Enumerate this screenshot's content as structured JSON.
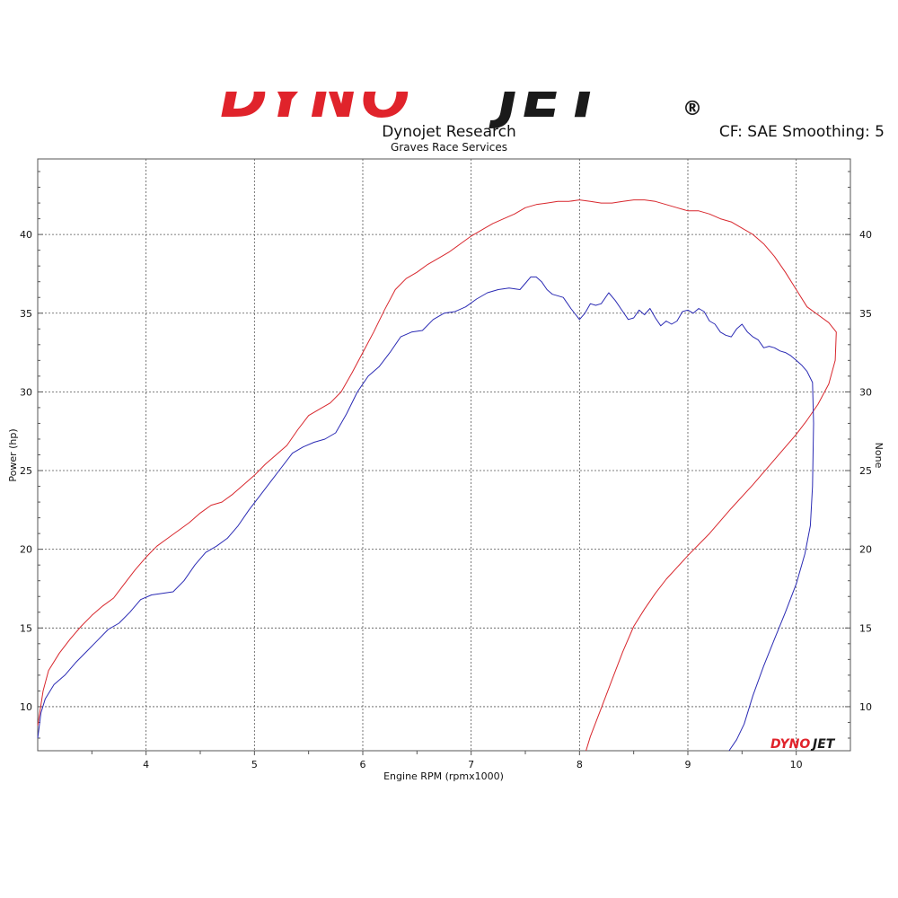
{
  "header": {
    "logo_red": "DYNO",
    "logo_black": "JET",
    "registered_mark": "®",
    "title": "Dynojet Research",
    "subtitle": "Graves Race Services",
    "correction": "CF: SAE Smoothing: 5"
  },
  "watermark": {
    "red": "DYNO",
    "black": "JET"
  },
  "colors": {
    "red": "#d8272d",
    "blue": "#2b2bb4",
    "grid": "#555555",
    "brand_red": "#e0232b",
    "brand_black": "#1a1a1a"
  },
  "chart_data": {
    "type": "line",
    "xlabel": "Engine RPM (rpmx1000)",
    "ylabel": "Power (hp)",
    "ylabel_right": "None",
    "xlim": [
      3.0,
      10.5
    ],
    "ylim": [
      7.2,
      44.8
    ],
    "x_ticks": [
      "4",
      "5",
      "6",
      "7",
      "8",
      "9",
      "10"
    ],
    "y_ticks": [
      "10",
      "15",
      "20",
      "25",
      "30",
      "35",
      "40"
    ],
    "y_ticks_right": [
      "10",
      "15",
      "20",
      "25",
      "30",
      "35",
      "40"
    ],
    "grid": true,
    "series": [
      {
        "color": "red",
        "points": [
          [
            3.0,
            8.8
          ],
          [
            3.05,
            11.0
          ],
          [
            3.1,
            12.3
          ],
          [
            3.2,
            13.4
          ],
          [
            3.3,
            14.3
          ],
          [
            3.4,
            15.1
          ],
          [
            3.5,
            15.8
          ],
          [
            3.6,
            16.4
          ],
          [
            3.7,
            16.9
          ],
          [
            3.8,
            17.8
          ],
          [
            3.9,
            18.7
          ],
          [
            4.0,
            19.5
          ],
          [
            4.1,
            20.2
          ],
          [
            4.2,
            20.7
          ],
          [
            4.3,
            21.2
          ],
          [
            4.4,
            21.7
          ],
          [
            4.5,
            22.3
          ],
          [
            4.6,
            22.8
          ],
          [
            4.7,
            23.0
          ],
          [
            4.8,
            23.5
          ],
          [
            4.9,
            24.1
          ],
          [
            5.0,
            24.7
          ],
          [
            5.1,
            25.4
          ],
          [
            5.2,
            26.0
          ],
          [
            5.3,
            26.6
          ],
          [
            5.4,
            27.6
          ],
          [
            5.5,
            28.5
          ],
          [
            5.6,
            28.9
          ],
          [
            5.7,
            29.3
          ],
          [
            5.8,
            30.0
          ],
          [
            5.9,
            31.2
          ],
          [
            6.0,
            32.5
          ],
          [
            6.1,
            33.8
          ],
          [
            6.2,
            35.2
          ],
          [
            6.3,
            36.5
          ],
          [
            6.4,
            37.2
          ],
          [
            6.5,
            37.6
          ],
          [
            6.6,
            38.1
          ],
          [
            6.7,
            38.5
          ],
          [
            6.8,
            38.9
          ],
          [
            6.9,
            39.4
          ],
          [
            7.0,
            39.9
          ],
          [
            7.1,
            40.3
          ],
          [
            7.2,
            40.7
          ],
          [
            7.3,
            41.0
          ],
          [
            7.4,
            41.3
          ],
          [
            7.5,
            41.7
          ],
          [
            7.6,
            41.9
          ],
          [
            7.7,
            42.0
          ],
          [
            7.8,
            42.1
          ],
          [
            7.9,
            42.1
          ],
          [
            8.0,
            42.2
          ],
          [
            8.1,
            42.1
          ],
          [
            8.2,
            42.0
          ],
          [
            8.3,
            42.0
          ],
          [
            8.4,
            42.1
          ],
          [
            8.5,
            42.2
          ],
          [
            8.6,
            42.2
          ],
          [
            8.7,
            42.1
          ],
          [
            8.8,
            41.9
          ],
          [
            8.9,
            41.7
          ],
          [
            9.0,
            41.5
          ],
          [
            9.1,
            41.5
          ],
          [
            9.2,
            41.3
          ],
          [
            9.3,
            41.0
          ],
          [
            9.4,
            40.8
          ],
          [
            9.5,
            40.4
          ],
          [
            9.6,
            40.0
          ],
          [
            9.7,
            39.4
          ],
          [
            9.8,
            38.6
          ],
          [
            9.9,
            37.6
          ],
          [
            10.0,
            36.5
          ],
          [
            10.1,
            35.4
          ],
          [
            10.2,
            34.9
          ],
          [
            10.3,
            34.4
          ],
          [
            10.37,
            33.8
          ],
          [
            10.36,
            32.0
          ],
          [
            10.3,
            30.5
          ],
          [
            10.2,
            29.2
          ],
          [
            10.1,
            28.2
          ],
          [
            10.0,
            27.3
          ],
          [
            9.8,
            25.7
          ],
          [
            9.6,
            24.1
          ],
          [
            9.4,
            22.6
          ],
          [
            9.2,
            21.0
          ],
          [
            9.0,
            19.6
          ],
          [
            8.8,
            18.1
          ],
          [
            8.7,
            17.2
          ],
          [
            8.6,
            16.2
          ],
          [
            8.5,
            15.1
          ],
          [
            8.4,
            13.5
          ],
          [
            8.3,
            11.7
          ],
          [
            8.2,
            9.9
          ],
          [
            8.1,
            8.1
          ],
          [
            8.06,
            7.2
          ]
        ]
      },
      {
        "color": "blue",
        "points": [
          [
            3.0,
            8.0
          ],
          [
            3.03,
            9.6
          ],
          [
            3.07,
            10.5
          ],
          [
            3.15,
            11.4
          ],
          [
            3.25,
            12.0
          ],
          [
            3.35,
            12.8
          ],
          [
            3.45,
            13.5
          ],
          [
            3.55,
            14.2
          ],
          [
            3.65,
            14.9
          ],
          [
            3.75,
            15.3
          ],
          [
            3.85,
            16.0
          ],
          [
            3.95,
            16.8
          ],
          [
            4.05,
            17.1
          ],
          [
            4.15,
            17.2
          ],
          [
            4.25,
            17.3
          ],
          [
            4.35,
            18.0
          ],
          [
            4.45,
            19.0
          ],
          [
            4.55,
            19.8
          ],
          [
            4.65,
            20.2
          ],
          [
            4.75,
            20.7
          ],
          [
            4.85,
            21.5
          ],
          [
            4.95,
            22.5
          ],
          [
            5.05,
            23.4
          ],
          [
            5.15,
            24.3
          ],
          [
            5.25,
            25.2
          ],
          [
            5.35,
            26.1
          ],
          [
            5.45,
            26.5
          ],
          [
            5.55,
            26.8
          ],
          [
            5.65,
            27.0
          ],
          [
            5.75,
            27.4
          ],
          [
            5.85,
            28.6
          ],
          [
            5.95,
            30.0
          ],
          [
            6.05,
            31.0
          ],
          [
            6.15,
            31.6
          ],
          [
            6.25,
            32.5
          ],
          [
            6.35,
            33.5
          ],
          [
            6.45,
            33.8
          ],
          [
            6.55,
            33.9
          ],
          [
            6.65,
            34.6
          ],
          [
            6.75,
            35.0
          ],
          [
            6.85,
            35.1
          ],
          [
            6.95,
            35.4
          ],
          [
            7.05,
            35.9
          ],
          [
            7.15,
            36.3
          ],
          [
            7.25,
            36.5
          ],
          [
            7.35,
            36.6
          ],
          [
            7.45,
            36.5
          ],
          [
            7.5,
            36.9
          ],
          [
            7.55,
            37.3
          ],
          [
            7.6,
            37.3
          ],
          [
            7.65,
            37.0
          ],
          [
            7.7,
            36.5
          ],
          [
            7.75,
            36.2
          ],
          [
            7.85,
            36.0
          ],
          [
            7.92,
            35.3
          ],
          [
            8.0,
            34.6
          ],
          [
            8.05,
            35.0
          ],
          [
            8.1,
            35.6
          ],
          [
            8.15,
            35.5
          ],
          [
            8.2,
            35.6
          ],
          [
            8.27,
            36.3
          ],
          [
            8.33,
            35.8
          ],
          [
            8.4,
            35.1
          ],
          [
            8.45,
            34.6
          ],
          [
            8.5,
            34.7
          ],
          [
            8.55,
            35.2
          ],
          [
            8.6,
            34.9
          ],
          [
            8.65,
            35.3
          ],
          [
            8.7,
            34.7
          ],
          [
            8.75,
            34.2
          ],
          [
            8.8,
            34.5
          ],
          [
            8.85,
            34.3
          ],
          [
            8.9,
            34.5
          ],
          [
            8.95,
            35.1
          ],
          [
            9.0,
            35.2
          ],
          [
            9.05,
            35.0
          ],
          [
            9.1,
            35.3
          ],
          [
            9.15,
            35.1
          ],
          [
            9.2,
            34.5
          ],
          [
            9.25,
            34.3
          ],
          [
            9.3,
            33.8
          ],
          [
            9.35,
            33.6
          ],
          [
            9.4,
            33.5
          ],
          [
            9.45,
            34.0
          ],
          [
            9.5,
            34.3
          ],
          [
            9.55,
            33.8
          ],
          [
            9.6,
            33.5
          ],
          [
            9.65,
            33.3
          ],
          [
            9.7,
            32.8
          ],
          [
            9.75,
            32.9
          ],
          [
            9.8,
            32.8
          ],
          [
            9.85,
            32.6
          ],
          [
            9.9,
            32.5
          ],
          [
            9.95,
            32.3
          ],
          [
            10.0,
            32.0
          ],
          [
            10.05,
            31.7
          ],
          [
            10.1,
            31.3
          ],
          [
            10.15,
            30.6
          ],
          [
            10.16,
            28.0
          ],
          [
            10.15,
            24.0
          ],
          [
            10.13,
            21.5
          ],
          [
            10.08,
            19.7
          ],
          [
            10.0,
            17.8
          ],
          [
            9.9,
            16.0
          ],
          [
            9.8,
            14.3
          ],
          [
            9.7,
            12.6
          ],
          [
            9.6,
            10.7
          ],
          [
            9.52,
            8.9
          ],
          [
            9.45,
            7.9
          ],
          [
            9.38,
            7.2
          ]
        ]
      }
    ]
  }
}
